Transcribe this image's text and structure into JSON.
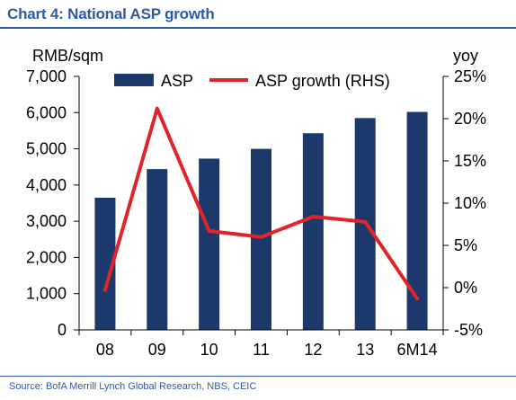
{
  "header": {
    "title": "Chart 4: National ASP growth"
  },
  "footer": {
    "source": "Source: BofA Merrill Lynch Global Research, NBS, CEIC"
  },
  "chart_data": {
    "type": "bar",
    "categories": [
      "08",
      "09",
      "10",
      "11",
      "12",
      "13",
      "6M14"
    ],
    "series": [
      {
        "name": "ASP",
        "type": "bar",
        "axis": "left",
        "color": "#1b3a6b",
        "values": [
          3650,
          4440,
          4730,
          5000,
          5430,
          5850,
          6020
        ]
      },
      {
        "name": "ASP growth (RHS)",
        "type": "line",
        "axis": "right",
        "color": "#e0242a",
        "values": [
          -0.3,
          21.2,
          6.7,
          6.0,
          8.4,
          7.8,
          -1.3
        ]
      }
    ],
    "ylabel_left": "RMB/sqm",
    "ylabel_right": "yoy",
    "ylim_left": [
      0,
      7000
    ],
    "ylim_right": [
      -5,
      25
    ],
    "left_ticks": [
      "0",
      "1,000",
      "2,000",
      "3,000",
      "4,000",
      "5,000",
      "6,000",
      "7,000"
    ],
    "right_ticks": [
      "-5%",
      "0%",
      "5%",
      "10%",
      "15%",
      "20%",
      "25%"
    ],
    "grid": false,
    "legend_position": "top"
  }
}
